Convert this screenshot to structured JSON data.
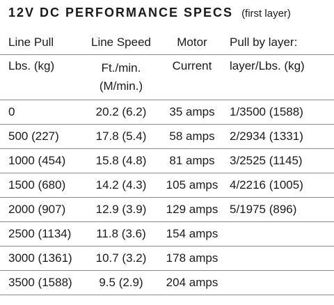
{
  "header": {
    "title": "12V DC PERFORMANCE SPECS",
    "subtitle": "(first layer)"
  },
  "table": {
    "header_rows": [
      [
        "Line Pull",
        "Line Speed",
        "Motor",
        "Pull by layer:"
      ],
      [
        "Lbs. (kg)",
        [
          "Ft./min.",
          "(M/min.)"
        ],
        "Current",
        "layer/Lbs. (kg)"
      ]
    ],
    "rows": [
      [
        "0",
        "20.2 (6.2)",
        "35 amps",
        "1/3500 (1588)"
      ],
      [
        "500 (227)",
        "17.8 (5.4)",
        "58 amps",
        "2/2934 (1331)"
      ],
      [
        "1000 (454)",
        "15.8 (4.8)",
        "81 amps",
        "3/2525 (1145)"
      ],
      [
        "1500 (680)",
        "14.2 (4.3)",
        "105 amps",
        "4/2216 (1005)"
      ],
      [
        "2000 (907)",
        "12.9 (3.9)",
        "129 amps",
        "5/1975 (896)"
      ],
      [
        "2500 (1134)",
        "11.8 (3.6)",
        "154 amps"
      ],
      [
        "3000 (1361)",
        "10.7 (3.2)",
        "178 amps"
      ],
      [
        "3500 (1588)",
        "9.5 (2.9)",
        "204 amps"
      ]
    ]
  }
}
